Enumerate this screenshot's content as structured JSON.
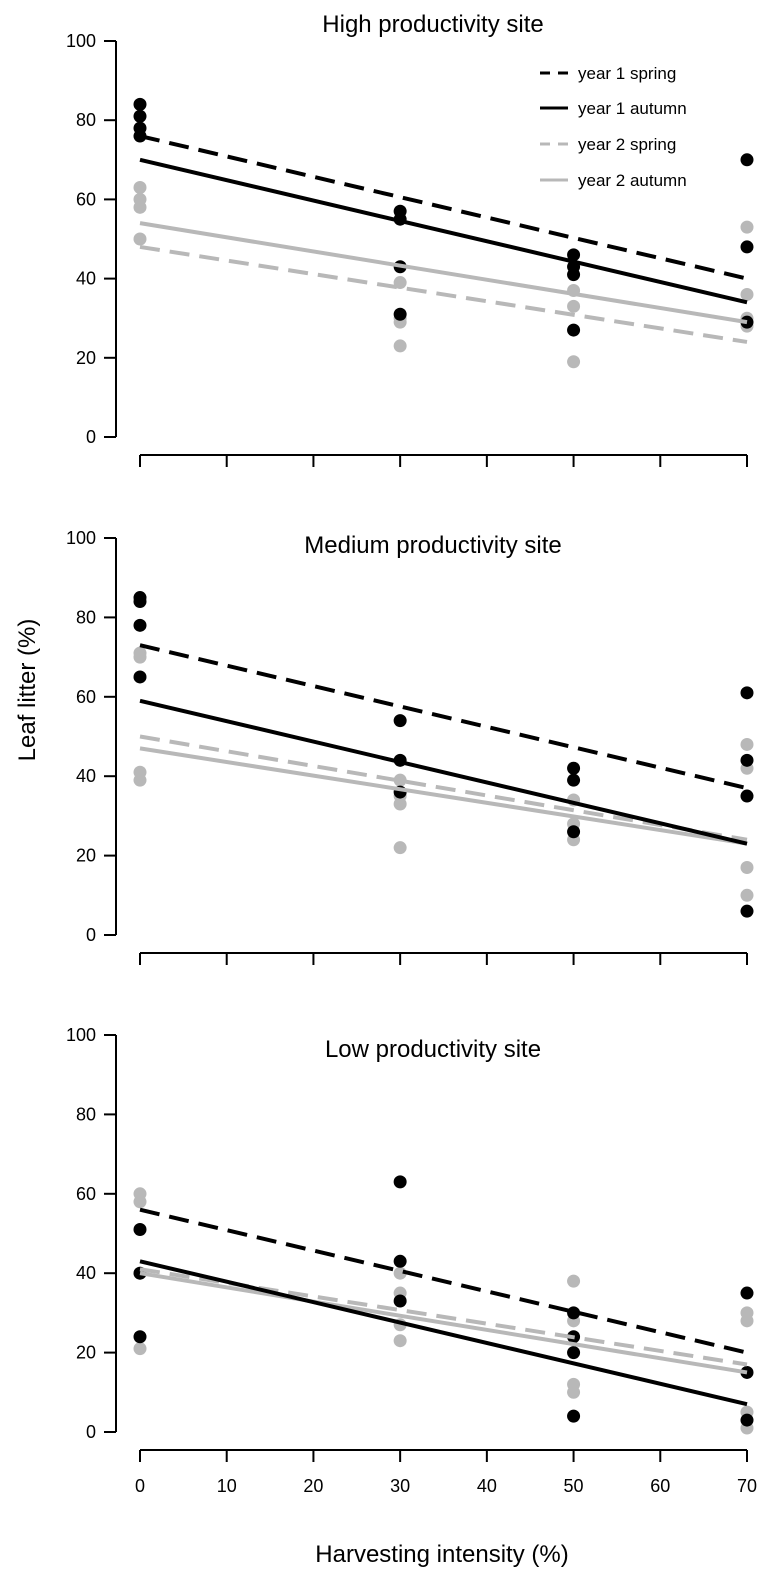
{
  "chart_data": {
    "type": "scatter",
    "ylabel": "Leaf litter (%)",
    "xlabel": "Harvesting intensity (%)",
    "x_ticks": [
      0,
      10,
      20,
      30,
      40,
      50,
      60,
      70
    ],
    "y_ticks": [
      0,
      20,
      40,
      60,
      80,
      100
    ],
    "xlim": [
      0,
      70
    ],
    "ylim": [
      0,
      100
    ],
    "legend_position": "top-right",
    "series_styles": [
      {
        "key": "y1s",
        "name": "year 1 spring",
        "color": "#000000",
        "dashed": true
      },
      {
        "key": "y1a",
        "name": "year 1 autumn",
        "color": "#000000",
        "dashed": false
      },
      {
        "key": "y2s",
        "name": "year 2 spring",
        "color": "#b8b8b8",
        "dashed": true
      },
      {
        "key": "y2a",
        "name": "year 2 autumn",
        "color": "#b8b8b8",
        "dashed": false
      }
    ],
    "panels": [
      {
        "title": "High productivity site",
        "x_tick_labels_shown": false,
        "points": {
          "black": [
            [
              0,
              84
            ],
            [
              0,
              81
            ],
            [
              0,
              78
            ],
            [
              0,
              76
            ],
            [
              30,
              57
            ],
            [
              30,
              55
            ],
            [
              30,
              43
            ],
            [
              30,
              31
            ],
            [
              50,
              46
            ],
            [
              50,
              43
            ],
            [
              50,
              41
            ],
            [
              50,
              27
            ],
            [
              70,
              70
            ],
            [
              70,
              48
            ],
            [
              70,
              29
            ]
          ],
          "gray": [
            [
              0,
              63
            ],
            [
              0,
              60
            ],
            [
              0,
              58
            ],
            [
              0,
              50
            ],
            [
              30,
              39
            ],
            [
              30,
              30
            ],
            [
              30,
              29
            ],
            [
              30,
              23
            ],
            [
              50,
              37
            ],
            [
              50,
              33
            ],
            [
              50,
              19
            ],
            [
              70,
              53
            ],
            [
              70,
              36
            ],
            [
              70,
              30
            ],
            [
              70,
              28
            ]
          ]
        },
        "lines": [
          {
            "series": "y1s",
            "y0": 76,
            "y70": 40
          },
          {
            "series": "y1a",
            "y0": 70,
            "y70": 34
          },
          {
            "series": "y2s",
            "y0": 48,
            "y70": 24
          },
          {
            "series": "y2a",
            "y0": 54,
            "y70": 29
          }
        ]
      },
      {
        "title": "Medium productivity site",
        "x_tick_labels_shown": false,
        "points": {
          "black": [
            [
              0,
              85
            ],
            [
              0,
              84
            ],
            [
              0,
              78
            ],
            [
              0,
              65
            ],
            [
              30,
              54
            ],
            [
              30,
              44
            ],
            [
              30,
              36
            ],
            [
              50,
              42
            ],
            [
              50,
              39
            ],
            [
              50,
              26
            ],
            [
              70,
              61
            ],
            [
              70,
              44
            ],
            [
              70,
              35
            ],
            [
              70,
              6
            ]
          ],
          "gray": [
            [
              0,
              71
            ],
            [
              0,
              70
            ],
            [
              0,
              41
            ],
            [
              0,
              39
            ],
            [
              30,
              39
            ],
            [
              30,
              35
            ],
            [
              30,
              33
            ],
            [
              30,
              22
            ],
            [
              50,
              34
            ],
            [
              50,
              28
            ],
            [
              50,
              24
            ],
            [
              70,
              48
            ],
            [
              70,
              42
            ],
            [
              70,
              17
            ],
            [
              70,
              10
            ]
          ]
        },
        "lines": [
          {
            "series": "y1s",
            "y0": 73,
            "y70": 37
          },
          {
            "series": "y1a",
            "y0": 59,
            "y70": 23
          },
          {
            "series": "y2s",
            "y0": 50,
            "y70": 24
          },
          {
            "series": "y2a",
            "y0": 47,
            "y70": 23
          }
        ]
      },
      {
        "title": "Low productivity site",
        "x_tick_labels_shown": true,
        "points": {
          "black": [
            [
              0,
              51
            ],
            [
              0,
              40
            ],
            [
              0,
              24
            ],
            [
              30,
              63
            ],
            [
              30,
              43
            ],
            [
              30,
              33
            ],
            [
              50,
              30
            ],
            [
              50,
              24
            ],
            [
              50,
              20
            ],
            [
              50,
              4
            ],
            [
              70,
              35
            ],
            [
              70,
              15
            ],
            [
              70,
              3
            ]
          ],
          "gray": [
            [
              0,
              60
            ],
            [
              0,
              58
            ],
            [
              0,
              40
            ],
            [
              0,
              21
            ],
            [
              30,
              40
            ],
            [
              30,
              35
            ],
            [
              30,
              27
            ],
            [
              30,
              23
            ],
            [
              50,
              38
            ],
            [
              50,
              28
            ],
            [
              50,
              12
            ],
            [
              50,
              10
            ],
            [
              70,
              30
            ],
            [
              70,
              28
            ],
            [
              70,
              5
            ],
            [
              70,
              1
            ]
          ]
        },
        "lines": [
          {
            "series": "y1s",
            "y0": 56,
            "y70": 20
          },
          {
            "series": "y1a",
            "y0": 43,
            "y70": 7
          },
          {
            "series": "y2s",
            "y0": 41,
            "y70": 17
          },
          {
            "series": "y2a",
            "y0": 40,
            "y70": 15
          }
        ]
      }
    ]
  }
}
